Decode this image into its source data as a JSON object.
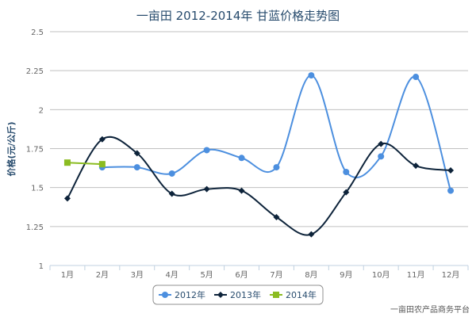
{
  "chart_data": {
    "type": "line",
    "title": "一亩田 2012-2014年 甘蓝价格走势图",
    "ylabel": "价格(元/公斤)",
    "xlabel": "",
    "categories": [
      "1月",
      "2月",
      "3月",
      "4月",
      "5月",
      "6月",
      "7月",
      "8月",
      "9月",
      "10月",
      "11月",
      "12月"
    ],
    "ylim": [
      1,
      2.5
    ],
    "yticks": [
      "1",
      "1.25",
      "1.5",
      "1.75",
      "2",
      "2.25",
      "2.5"
    ],
    "grid": "horizontal",
    "legend_position": "bottom",
    "series": [
      {
        "name": "2012年",
        "color": "#4c8fdf",
        "marker": "circle",
        "values": [
          null,
          1.63,
          1.63,
          1.59,
          1.74,
          1.69,
          1.63,
          2.22,
          1.6,
          1.7,
          2.21,
          1.48
        ]
      },
      {
        "name": "2013年",
        "color": "#0d233a",
        "marker": "diamond",
        "values": [
          1.43,
          1.81,
          1.72,
          1.46,
          1.49,
          1.48,
          1.31,
          1.2,
          1.47,
          1.78,
          1.64,
          1.61
        ]
      },
      {
        "name": "2014年",
        "color": "#8bbc21",
        "marker": "square",
        "values": [
          1.66,
          1.65,
          null,
          null,
          null,
          null,
          null,
          null,
          null,
          null,
          null,
          null
        ]
      }
    ]
  },
  "credit": "一亩田农产品商务平台"
}
